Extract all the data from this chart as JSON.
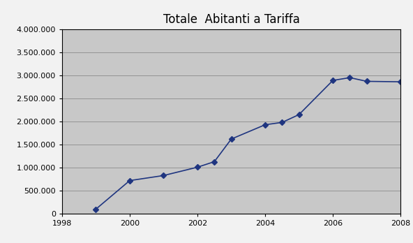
{
  "title": "Totale  Abitanti a Tariffa",
  "years": [
    1999,
    2000,
    2001,
    2002,
    2002.5,
    2003,
    2004,
    2004.5,
    2005,
    2006,
    2006.5,
    2007,
    2008
  ],
  "values": [
    100000,
    720000,
    830000,
    1010000,
    1130000,
    1620000,
    1930000,
    1980000,
    2150000,
    2890000,
    2950000,
    2870000,
    2860000
  ],
  "xlim": [
    1998,
    2008
  ],
  "ylim": [
    0,
    4000000
  ],
  "xticks": [
    1998,
    2000,
    2002,
    2004,
    2006,
    2008
  ],
  "yticks": [
    0,
    500000,
    1000000,
    1500000,
    2000000,
    2500000,
    3000000,
    3500000,
    4000000
  ],
  "line_color": "#1F3580",
  "marker": "D",
  "marker_size": 4,
  "bg_color": "#C8C8C8",
  "outer_bg": "#F2F2F2",
  "grid_color": "#808080",
  "title_fontsize": 12,
  "tick_fontsize": 8
}
